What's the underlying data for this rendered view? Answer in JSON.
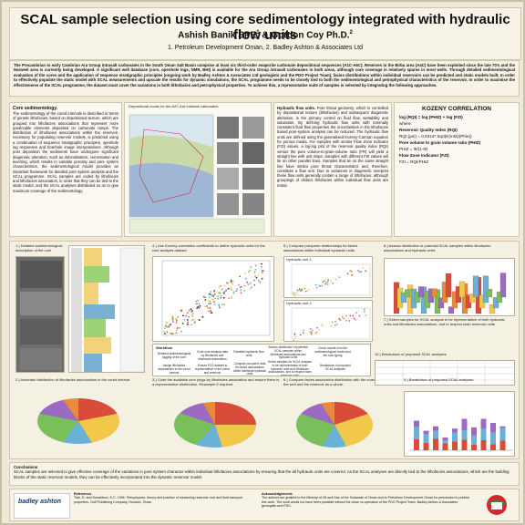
{
  "header": {
    "title": "SCAL sample selection using core sedimentology integrated with hydraulic flow units",
    "authors": [
      "Ashish Banik SPE",
      "& Gordon Coy Ph.D."
    ],
    "author_sups": [
      "1",
      "2"
    ],
    "affiliations": "1. Petroleum Development Oman, 2. Badley Ashton  & Associates Ltd"
  },
  "intro": "The Precambrian to early Cambrian Ara Group intrasalt carbonates in the South Oman Salt Basin comprise at least six third-order evaporite carbonate depositional sequences (A1C-A6C). Reserves in the Birba area (A4C) have been exploited since the late 70's and the Harweel area is currently being developed. A significant well database (core, openhole logs, NMR, BHI) is available for the Ara Group intrasalt carbonates in both areas, although core coverage is relatively sparse in most wells. Through detailed sedimentological evaluation of the cores and the application of sequence stratigraphic principles (ongoing work by Badley Ashton & Associates Ltd geologists and the PDO Project Team), facies distributions within individual reservoirs can be predicted and static models built. In order to effectively populate the static model with SCAL measurements and upscale the results for dynamic simulations, the SCAL programme needs to be closely tied to both the sedimentological and petrophysical characteristics of the reservoir. In order to maximise the effectiveness of the SCAL programme, the dataset must cover the variations in both lithofacies and petrophysical properties. To achieve this, a representative suite of samples is selected by integrating the following approaches.",
  "core_sed": {
    "heading": "Core sedimentology.",
    "text": "The sedimentology of the cored intervals is described in terms of genetic lithofacies, based on depositional texture, which are grouped into lithofacies associations that represent more predictable elements deposited on carbonate ramps. The distribution of lithofacies associations within the reservoir, necessary for populating reservoir models, is predicted using a combination of sequence stratigraphic principles, openhole log responses and borehole image interpretations. Although post deposition the sediments have undergone significant diagenetic alteration, such as dolomitisation, cementation and leaching, which results in variable porosity and pore system characteristics, the sedimentological model provides an important framework for detailed pore system analysis and the SCAL programme. SCAL samples are coded by lithofacies and lithofacies association, in order that they can be tied to the static model, and the SCAL analyses distributed so as to give maximum coverage of the sedimentology.",
    "map_caption": "Depositional model for the A2C Ara Intrasalt carbonates."
  },
  "hfu": {
    "heading": "Hydraulic flow units.",
    "text": "Pore throat geometry, which is controlled by depositional texture (lithofacies) and subsequent diagenetic alteration, is the primary control on fluid flow, wettability and saturation. By defining hydraulic flow units with internally consistent fluid flow properties the uncertainties in the lithofacies based pore-system analysis can be reduced. The hydraulic flow units are defined using the generalised Kozeny-Carman equation for porous media. For samples with similar Flow Zone Indicator (FZI) values, a log-log plot of the reservoir quality index (RQI) versus the pore volume-to-grain-volume ratio (FR) will yield a straight line with unit slope. Samples with different FZI values will lie on other parallel lines. Samples that lie on the same straight line have similar pore throat characteristics and, therefore, constitute a flow unit. Due to variations in diagenetic overprint these flow units generally contain a range of lithofacies, although groupings of distinct lithofacies within individual flow units are noted."
  },
  "kozeny": {
    "title": "KOZENY  CORRELATION",
    "eq1": "log (RQI) = log (PHIZ) + log (FZI)",
    "where": "where:",
    "rqi_label": "Reservoir Quality Index (RQI)",
    "rqi_eq": "RQI (µm) = 0.0314* Sqrt(K(mD)/(Phie))",
    "phiz_label": "Pore volume to grain volume ratio (PHIZ)",
    "phiz_eq": "PHIZ = Φ/(1-Φ)",
    "fzi_label": "Flow Zone Indicator (FZI)",
    "fzi_eq": "FZI = RQI/PHIZ"
  },
  "figs": {
    "f1": "1.) Detailed sedimentological description of the core",
    "f2": "2.) Ascertain distribution of lithofacies associations in the cored interval",
    "f3": "3.) Code the available core plugs by lithofacies association and ensure there is a representative distribution. Resample if required.",
    "f4": "4.) Use Kozeny correlation coefficients to define hydraulic units for the core analysis dataset",
    "f5": "5.) Compare poroperm relationships for facies associations within individual hydraulic units",
    "f5a": "Hydraulic unit 1",
    "f5b": "Hydraulic unit 2",
    "f5_axis_y": "Perm",
    "f5_axis_x": "Phie",
    "f6": "6.) Compare facies association distribution with the cored interval in the well and the reservoir as a whole.",
    "f7": "7.) Select samples for SCAL analysis to be representative of both hydraulic units and lithofacies associations, and to respect main reservoir units",
    "f8": "8.) Assess distribution of potential SCAL samples within lithofacies associations and hydraulic units",
    "f9": "9.) Breakdown of proposed SCAL analyses",
    "f10": "10.) Breakdown of proposed SCAL analyses"
  },
  "workflow": {
    "title": "Workflow",
    "steps": [
      "Detailed sedimentological logging of the core",
      "Code core analysis data by lithofacies and lithofacies association",
      "Establish hydraulic flow units",
      "Assess distribution of potential SCAL samples within lithofacies associations and hydraulic units",
      "Check results from the sedimentological model and the rock typing",
      "Assign lithofacies associations to the cored interval",
      "Ensure PCS dataset is representative of the cored and reservoir",
      "Compare poroperm data for facies associations within individual hydraulic units",
      "Select samples for SCAL analysis to be representative of both hydraulic units and lithofacies associations, and to respect main reservoir units",
      "Breakdown of proposed SCAL analyses"
    ]
  },
  "conclusions": {
    "heading": "Conclusions",
    "text": "SCAL samples are selected to give effective coverage of the variations in pore system character within individual lithofacies associations by ensuring that the all hydraulic units are covered. As the SCAL analyses are directly tied to the lithofacies associations, which are the building blocks of the static reservoir models, they can be effectively incorporated into the dynamic reservoir model."
  },
  "footer": {
    "logo": "badley ashton",
    "refs_heading": "References",
    "refs_text": "Tiab, D. and Donaldson, E.C. 1996. Petrophysics: theory and practice of measuring reservoir rock and fluid transport properties. Gulf Publishing Company, Houston, Texas.",
    "ack_heading": "Acknowledgements",
    "ack_text": "The authors are grateful to the Ministry of Oil and Gas of the Sultanate of Oman and to Petroleum Development Oman for permission to publish this work. The work would not have been possible without the close co-operation of the PDO Project Team, Badley Ashton & Associates geologists and PDO."
  },
  "colors": {
    "bg": "#efe9d9",
    "panel": "#fbf9f1",
    "border": "#cfc6ad",
    "brand_blue": "#0b3a7a"
  }
}
